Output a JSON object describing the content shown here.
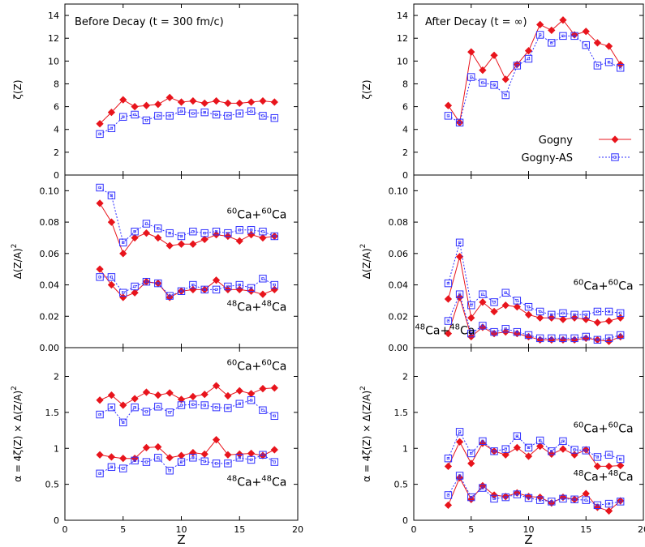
{
  "colors": {
    "gogny": "#e8141c",
    "gogny_as": "#3030ff",
    "axis": "#000000"
  },
  "chart_data": [
    {
      "type": "line",
      "panel": "zeta-before",
      "title": "Before Decay (t = 300 fm/c)",
      "xlabel": "",
      "ylabel": "ζ(Z)",
      "xlim": [
        0,
        20
      ],
      "ylim": [
        0,
        15
      ],
      "xticks": [],
      "xtick_labels": [],
      "yticks": [
        0,
        2,
        4,
        6,
        8,
        10,
        12,
        14
      ],
      "ytick_labels": [
        "0",
        "2",
        "4",
        "6",
        "8",
        "10",
        "12",
        "14"
      ],
      "annotations": [],
      "legend": null,
      "series": [
        {
          "name": "Gogny",
          "style": "gogny",
          "x": [
            3,
            4,
            5,
            6,
            7,
            8,
            9,
            10,
            11,
            12,
            13,
            14,
            15,
            16,
            17,
            18
          ],
          "y": [
            4.5,
            5.5,
            6.6,
            6.0,
            6.1,
            6.2,
            6.8,
            6.4,
            6.5,
            6.3,
            6.5,
            6.3,
            6.3,
            6.4,
            6.5,
            6.4
          ]
        },
        {
          "name": "Gogny-AS",
          "style": "gogny_as",
          "x": [
            3,
            4,
            5,
            6,
            7,
            8,
            9,
            10,
            11,
            12,
            13,
            14,
            15,
            16,
            17,
            18
          ],
          "y": [
            3.6,
            4.1,
            5.1,
            5.3,
            4.8,
            5.2,
            5.2,
            5.6,
            5.4,
            5.5,
            5.3,
            5.2,
            5.4,
            5.6,
            5.2,
            5.0
          ]
        }
      ]
    },
    {
      "type": "line",
      "panel": "zeta-after",
      "title": "After Decay (t = ∞)",
      "xlabel": "",
      "ylabel": "ζ(Z)",
      "xlim": [
        0,
        20
      ],
      "ylim": [
        0,
        15
      ],
      "xticks": [],
      "xtick_labels": [],
      "yticks": [
        0,
        2,
        4,
        6,
        8,
        10,
        12,
        14
      ],
      "ytick_labels": [
        "0",
        "2",
        "4",
        "6",
        "8",
        "10",
        "12",
        "14"
      ],
      "annotations": [],
      "legend": {
        "position": "bottom-right",
        "entries": [
          "Gogny",
          "Gogny-AS"
        ]
      },
      "series": [
        {
          "name": "Gogny",
          "style": "gogny",
          "x": [
            3,
            4,
            5,
            6,
            7,
            8,
            9,
            10,
            11,
            12,
            13,
            14,
            15,
            16,
            17,
            18
          ],
          "y": [
            6.1,
            4.6,
            10.8,
            9.2,
            10.5,
            8.4,
            9.7,
            10.9,
            13.2,
            12.7,
            13.6,
            12.3,
            12.6,
            11.6,
            11.3,
            9.7
          ]
        },
        {
          "name": "Gogny-AS",
          "style": "gogny_as",
          "x": [
            3,
            4,
            5,
            6,
            7,
            8,
            9,
            10,
            11,
            12,
            13,
            14,
            15,
            16,
            17,
            18
          ],
          "y": [
            5.2,
            4.6,
            8.6,
            8.1,
            7.9,
            7.0,
            9.6,
            10.2,
            12.3,
            11.6,
            12.2,
            12.2,
            11.4,
            9.6,
            9.9,
            9.4
          ]
        }
      ]
    },
    {
      "type": "line",
      "panel": "delta-before",
      "title": "",
      "xlabel": "",
      "ylabel": "Δ(Z/A)",
      "ylabel_sup": "2",
      "xlim": [
        0,
        20
      ],
      "ylim": [
        0,
        0.11
      ],
      "xticks": [],
      "xtick_labels": [],
      "yticks": [
        0,
        0.02,
        0.04,
        0.06,
        0.08,
        0.1
      ],
      "ytick_labels": [
        "0.00",
        "0.02",
        "0.04",
        "0.06",
        "0.08",
        "0.10"
      ],
      "annotations": [
        {
          "sup1": "60",
          "t1": "Ca+",
          "sup2": "60",
          "t2": "Ca",
          "x": 13.9,
          "y": 0.0825
        },
        {
          "sup1": "48",
          "t1": "Ca+",
          "sup2": "48",
          "t2": "Ca",
          "x": 13.9,
          "y": 0.0235
        }
      ],
      "legend": null,
      "series": [
        {
          "name": "Gogny 60Ca+60Ca",
          "style": "gogny",
          "x": [
            3,
            4,
            5,
            6,
            7,
            8,
            9,
            10,
            11,
            12,
            13,
            14,
            15,
            16,
            17,
            18
          ],
          "y": [
            0.092,
            0.08,
            0.06,
            0.07,
            0.073,
            0.07,
            0.065,
            0.066,
            0.066,
            0.069,
            0.072,
            0.071,
            0.068,
            0.072,
            0.07,
            0.071
          ]
        },
        {
          "name": "Gogny-AS 60Ca+60Ca",
          "style": "gogny_as",
          "x": [
            3,
            4,
            5,
            6,
            7,
            8,
            9,
            10,
            11,
            12,
            13,
            14,
            15,
            16,
            17,
            18
          ],
          "y": [
            0.102,
            0.097,
            0.067,
            0.074,
            0.079,
            0.076,
            0.073,
            0.071,
            0.074,
            0.073,
            0.074,
            0.073,
            0.075,
            0.075,
            0.074,
            0.071
          ]
        },
        {
          "name": "Gogny 48Ca+48Ca",
          "style": "gogny",
          "x": [
            3,
            4,
            5,
            6,
            7,
            8,
            9,
            10,
            11,
            12,
            13,
            14,
            15,
            16,
            17,
            18
          ],
          "y": [
            0.05,
            0.04,
            0.032,
            0.035,
            0.042,
            0.041,
            0.032,
            0.036,
            0.037,
            0.037,
            0.043,
            0.037,
            0.037,
            0.036,
            0.034,
            0.037
          ]
        },
        {
          "name": "Gogny-AS 48Ca+48Ca",
          "style": "gogny_as",
          "x": [
            3,
            4,
            5,
            6,
            7,
            8,
            9,
            10,
            11,
            12,
            13,
            14,
            15,
            16,
            17,
            18
          ],
          "y": [
            0.045,
            0.045,
            0.035,
            0.039,
            0.042,
            0.041,
            0.033,
            0.036,
            0.04,
            0.037,
            0.037,
            0.039,
            0.04,
            0.038,
            0.044,
            0.04
          ]
        }
      ]
    },
    {
      "type": "line",
      "panel": "delta-after",
      "title": "",
      "xlabel": "",
      "ylabel": "Δ(Z/A)",
      "ylabel_sup": "2",
      "xlim": [
        0,
        20
      ],
      "ylim": [
        0,
        0.11
      ],
      "xticks": [],
      "xtick_labels": [],
      "yticks": [
        0,
        0.02,
        0.04,
        0.06,
        0.08,
        0.1
      ],
      "ytick_labels": [
        "0.00",
        "0.02",
        "0.04",
        "0.06",
        "0.08",
        "0.10"
      ],
      "annotations": [
        {
          "sup1": "60",
          "t1": "Ca+",
          "sup2": "60",
          "t2": "Ca",
          "x": 13.9,
          "y": 0.037
        },
        {
          "sup1": "48",
          "t1": "Ca+",
          "sup2": "48",
          "t2": "Ca",
          "x": 0.1,
          "y": 0.0085
        }
      ],
      "legend": null,
      "series": [
        {
          "name": "Gogny 60Ca+60Ca",
          "style": "gogny",
          "x": [
            3,
            4,
            5,
            6,
            7,
            8,
            9,
            10,
            11,
            12,
            13,
            14,
            15,
            16,
            17,
            18
          ],
          "y": [
            0.031,
            0.058,
            0.019,
            0.029,
            0.023,
            0.027,
            0.026,
            0.021,
            0.019,
            0.019,
            0.018,
            0.019,
            0.018,
            0.016,
            0.017,
            0.019
          ]
        },
        {
          "name": "Gogny-AS 60Ca+60Ca",
          "style": "gogny_as",
          "x": [
            3,
            4,
            5,
            6,
            7,
            8,
            9,
            10,
            11,
            12,
            13,
            14,
            15,
            16,
            17,
            18
          ],
          "y": [
            0.041,
            0.067,
            0.027,
            0.034,
            0.029,
            0.035,
            0.03,
            0.026,
            0.023,
            0.021,
            0.022,
            0.021,
            0.021,
            0.023,
            0.023,
            0.022
          ]
        },
        {
          "name": "Gogny 48Ca+48Ca",
          "style": "gogny",
          "x": [
            3,
            4,
            5,
            6,
            7,
            8,
            9,
            10,
            11,
            12,
            13,
            14,
            15,
            16,
            17,
            18
          ],
          "y": [
            0.009,
            0.032,
            0.007,
            0.013,
            0.009,
            0.01,
            0.009,
            0.007,
            0.005,
            0.005,
            0.005,
            0.005,
            0.006,
            0.005,
            0.004,
            0.007
          ]
        },
        {
          "name": "Gogny-AS 48Ca+48Ca",
          "style": "gogny_as",
          "x": [
            3,
            4,
            5,
            6,
            7,
            8,
            9,
            10,
            11,
            12,
            13,
            14,
            15,
            16,
            17,
            18
          ],
          "y": [
            0.017,
            0.034,
            0.009,
            0.014,
            0.01,
            0.012,
            0.01,
            0.008,
            0.006,
            0.006,
            0.006,
            0.006,
            0.007,
            0.005,
            0.006,
            0.008
          ]
        }
      ]
    },
    {
      "type": "line",
      "panel": "alpha-before",
      "title": "",
      "xlabel": "Z",
      "ylabel": "α = 4ζ(Z) × Δ(Z/A)",
      "ylabel_sup": "2",
      "xlim": [
        0,
        20
      ],
      "ylim": [
        0,
        2.4
      ],
      "xticks": [
        0,
        5,
        10,
        15,
        20
      ],
      "xtick_labels": [
        "0",
        "5",
        "10",
        "15",
        "20"
      ],
      "yticks": [
        0,
        0.5,
        1,
        1.5,
        2
      ],
      "ytick_labels": [
        "0",
        "0.5",
        "1",
        "1.5",
        "2"
      ],
      "annotations": [
        {
          "sup1": "60",
          "t1": "Ca+",
          "sup2": "60",
          "t2": "Ca",
          "x": 13.9,
          "y": 2.09
        },
        {
          "sup1": "48",
          "t1": "Ca+",
          "sup2": "48",
          "t2": "Ca",
          "x": 13.9,
          "y": 0.48
        }
      ],
      "legend": null,
      "series": [
        {
          "name": "Gogny 60Ca+60Ca",
          "style": "gogny",
          "x": [
            3,
            4,
            5,
            6,
            7,
            8,
            9,
            10,
            11,
            12,
            13,
            14,
            15,
            16,
            17,
            18
          ],
          "y": [
            1.67,
            1.74,
            1.6,
            1.69,
            1.78,
            1.74,
            1.77,
            1.68,
            1.72,
            1.75,
            1.87,
            1.73,
            1.8,
            1.76,
            1.83,
            1.84
          ]
        },
        {
          "name": "Gogny-AS 60Ca+60Ca",
          "style": "gogny_as",
          "x": [
            3,
            4,
            5,
            6,
            7,
            8,
            9,
            10,
            11,
            12,
            13,
            14,
            15,
            16,
            17,
            18
          ],
          "y": [
            1.47,
            1.57,
            1.36,
            1.57,
            1.51,
            1.58,
            1.5,
            1.6,
            1.61,
            1.6,
            1.57,
            1.56,
            1.62,
            1.67,
            1.53,
            1.45
          ]
        },
        {
          "name": "Gogny 48Ca+48Ca",
          "style": "gogny",
          "x": [
            3,
            4,
            5,
            6,
            7,
            8,
            9,
            10,
            11,
            12,
            13,
            14,
            15,
            16,
            17,
            18
          ],
          "y": [
            0.91,
            0.88,
            0.86,
            0.86,
            1.01,
            1.02,
            0.87,
            0.9,
            0.94,
            0.92,
            1.12,
            0.91,
            0.92,
            0.93,
            0.9,
            0.98
          ]
        },
        {
          "name": "Gogny-AS 48Ca+48Ca",
          "style": "gogny_as",
          "x": [
            3,
            4,
            5,
            6,
            7,
            8,
            9,
            10,
            11,
            12,
            13,
            14,
            15,
            16,
            17,
            18
          ],
          "y": [
            0.65,
            0.74,
            0.72,
            0.83,
            0.81,
            0.87,
            0.69,
            0.81,
            0.87,
            0.82,
            0.79,
            0.79,
            0.87,
            0.84,
            0.91,
            0.81
          ]
        }
      ]
    },
    {
      "type": "line",
      "panel": "alpha-after",
      "title": "",
      "xlabel": "Z",
      "ylabel": "α = 4ζ(Z) × Δ(Z/A)",
      "ylabel_sup": "2",
      "xlim": [
        0,
        20
      ],
      "ylim": [
        0,
        2.4
      ],
      "xticks": [
        0,
        5,
        10,
        15,
        20
      ],
      "xtick_labels": [
        "0",
        "5",
        "10",
        "15",
        "20"
      ],
      "yticks": [
        0,
        0.5,
        1,
        1.5,
        2
      ],
      "ytick_labels": [
        "0",
        "0.5",
        "1",
        "1.5",
        "2"
      ],
      "annotations": [
        {
          "sup1": "60",
          "t1": "Ca+",
          "sup2": "60",
          "t2": "Ca",
          "x": 13.9,
          "y": 1.22
        },
        {
          "sup1": "48",
          "t1": "Ca+",
          "sup2": "48",
          "t2": "Ca",
          "x": 13.9,
          "y": 0.55
        }
      ],
      "legend": null,
      "series": [
        {
          "name": "Gogny 60Ca+60Ca",
          "style": "gogny",
          "x": [
            3,
            4,
            5,
            6,
            7,
            8,
            9,
            10,
            11,
            12,
            13,
            14,
            15,
            16,
            17,
            18
          ],
          "y": [
            0.75,
            1.09,
            0.79,
            1.07,
            0.96,
            0.91,
            1.01,
            0.89,
            1.03,
            0.92,
            0.99,
            0.91,
            0.98,
            0.75,
            0.75,
            0.76
          ]
        },
        {
          "name": "Gogny-AS 60Ca+60Ca",
          "style": "gogny_as",
          "x": [
            3,
            4,
            5,
            6,
            7,
            8,
            9,
            10,
            11,
            12,
            13,
            14,
            15,
            16,
            17,
            18
          ],
          "y": [
            0.86,
            1.23,
            0.93,
            1.1,
            0.96,
            0.99,
            1.17,
            1.01,
            1.11,
            0.96,
            1.1,
            0.98,
            0.97,
            0.88,
            0.91,
            0.85
          ]
        },
        {
          "name": "Gogny 48Ca+48Ca",
          "style": "gogny",
          "x": [
            3,
            4,
            5,
            6,
            7,
            8,
            9,
            10,
            11,
            12,
            13,
            14,
            15,
            16,
            17,
            18
          ],
          "y": [
            0.21,
            0.59,
            0.29,
            0.48,
            0.35,
            0.33,
            0.38,
            0.33,
            0.32,
            0.24,
            0.32,
            0.29,
            0.37,
            0.18,
            0.13,
            0.27
          ]
        },
        {
          "name": "Gogny-AS 48Ca+48Ca",
          "style": "gogny_as",
          "x": [
            3,
            4,
            5,
            6,
            7,
            8,
            9,
            10,
            11,
            12,
            13,
            14,
            15,
            16,
            17,
            18
          ],
          "y": [
            0.35,
            0.62,
            0.32,
            0.45,
            0.3,
            0.32,
            0.36,
            0.31,
            0.28,
            0.26,
            0.3,
            0.29,
            0.28,
            0.21,
            0.23,
            0.26
          ]
        }
      ]
    }
  ]
}
